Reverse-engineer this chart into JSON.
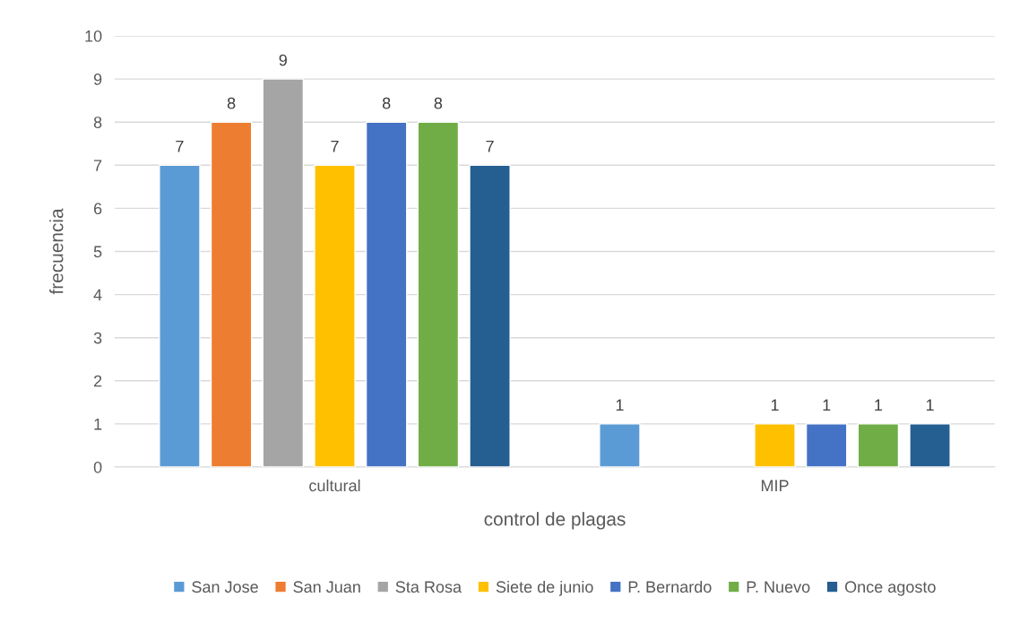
{
  "chart_data": {
    "type": "bar",
    "xlabel": "control de plagas",
    "ylabel": "frecuencia",
    "categories": [
      "cultural",
      "MIP"
    ],
    "series": [
      {
        "name": "San Jose",
        "color": "#5b9bd5",
        "values": [
          7,
          1
        ]
      },
      {
        "name": "San Juan",
        "color": "#ed7d31",
        "values": [
          8,
          null
        ]
      },
      {
        "name": "Sta Rosa",
        "color": "#a5a5a5",
        "values": [
          9,
          null
        ]
      },
      {
        "name": "Siete de junio",
        "color": "#ffc000",
        "values": [
          7,
          1
        ]
      },
      {
        "name": "P. Bernardo",
        "color": "#4472c4",
        "values": [
          8,
          1
        ]
      },
      {
        "name": "P. Nuevo",
        "color": "#70ad47",
        "values": [
          8,
          1
        ]
      },
      {
        "name": "Once agosto",
        "color": "#255e91",
        "values": [
          7,
          1
        ]
      }
    ],
    "ylim": [
      0,
      10
    ],
    "yticks": [
      0,
      1,
      2,
      3,
      4,
      5,
      6,
      7,
      8,
      9,
      10
    ],
    "grid": "y",
    "legend": "bottom",
    "data_labels": true
  }
}
